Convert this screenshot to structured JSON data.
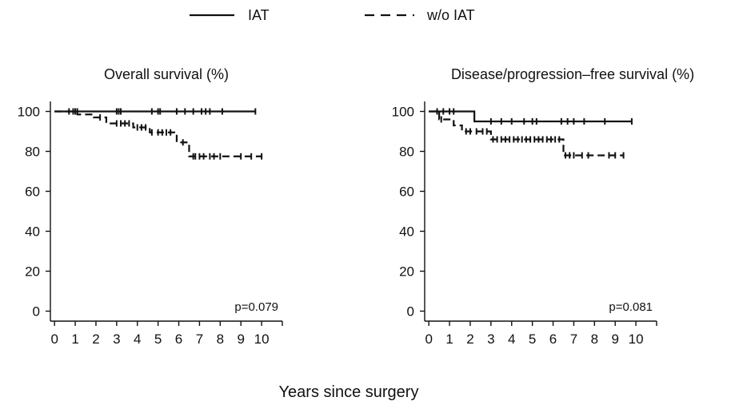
{
  "legend": {
    "placement": "top-center",
    "items": [
      {
        "label": "IAT",
        "style": "solid"
      },
      {
        "label": "w/o IAT",
        "style": "dashed"
      }
    ]
  },
  "shared_xlabel": "Years since surgery",
  "chart_data": [
    {
      "type": "line",
      "subtype": "kaplan-meier step",
      "title": "Overall survival (%)",
      "xlabel": "",
      "ylabel": "",
      "xlim": [
        -0.2,
        11
      ],
      "ylim": [
        -5,
        105
      ],
      "x_ticks": [
        0,
        1,
        2,
        3,
        4,
        5,
        6,
        7,
        8,
        9,
        10
      ],
      "y_ticks": [
        0,
        20,
        40,
        60,
        80,
        100
      ],
      "grid": false,
      "annotation": "p=0.079",
      "series": [
        {
          "name": "IAT",
          "style": "solid",
          "x": [
            0,
            9.7
          ],
          "y": [
            100,
            100
          ],
          "censor_x": [
            0.9,
            1.1,
            3.0,
            3.1,
            3.2,
            4.7,
            5.0,
            5.1,
            5.9,
            6.3,
            6.7,
            7.1,
            7.3,
            7.5,
            8.1,
            9.7
          ]
        },
        {
          "name": "w/o IAT",
          "style": "dashed",
          "x": [
            0,
            1.1,
            1.9,
            2.5,
            3.8,
            4.6,
            5.9,
            6.5,
            10.0
          ],
          "y": [
            100,
            98.5,
            97,
            94,
            92,
            89.5,
            84.5,
            77.5,
            77.5
          ],
          "censor_x": [
            0.7,
            1.0,
            2.2,
            3.0,
            3.2,
            3.4,
            3.6,
            4.0,
            4.2,
            4.4,
            4.7,
            5.0,
            5.2,
            5.4,
            5.6,
            6.2,
            6.7,
            6.8,
            7.0,
            7.2,
            7.5,
            7.7,
            8.0,
            9.0,
            9.5,
            10.0
          ]
        }
      ]
    },
    {
      "type": "line",
      "subtype": "kaplan-meier step",
      "title": "Disease/progression–free survival (%)",
      "xlabel": "",
      "ylabel": "",
      "xlim": [
        -0.2,
        11
      ],
      "ylim": [
        -5,
        105
      ],
      "x_ticks": [
        0,
        1,
        2,
        3,
        4,
        5,
        6,
        7,
        8,
        9,
        10
      ],
      "y_ticks": [
        0,
        20,
        40,
        60,
        80,
        100
      ],
      "grid": false,
      "annotation": "p=0.081",
      "series": [
        {
          "name": "IAT",
          "style": "solid",
          "x": [
            0,
            2.2,
            9.8
          ],
          "y": [
            100,
            95,
            95
          ],
          "censor_x": [
            0.7,
            1.0,
            1.2,
            3.0,
            3.5,
            4.0,
            4.6,
            5.0,
            5.2,
            6.4,
            6.7,
            7.0,
            7.5,
            8.5,
            9.8
          ]
        },
        {
          "name": "w/o IAT",
          "style": "dashed",
          "x": [
            0,
            0.5,
            1.2,
            1.6,
            3.0,
            6.5,
            9.4
          ],
          "y": [
            100,
            96,
            93,
            90,
            86,
            78,
            78
          ],
          "censor_x": [
            0.4,
            0.6,
            1.8,
            2.0,
            2.3,
            2.6,
            2.8,
            3.1,
            3.3,
            3.5,
            3.7,
            3.9,
            4.1,
            4.3,
            4.5,
            4.7,
            4.9,
            5.1,
            5.3,
            5.5,
            5.7,
            5.9,
            6.1,
            6.3,
            6.6,
            6.8,
            7.0,
            7.4,
            7.7,
            8.7,
            9.0,
            9.4
          ]
        }
      ]
    }
  ]
}
